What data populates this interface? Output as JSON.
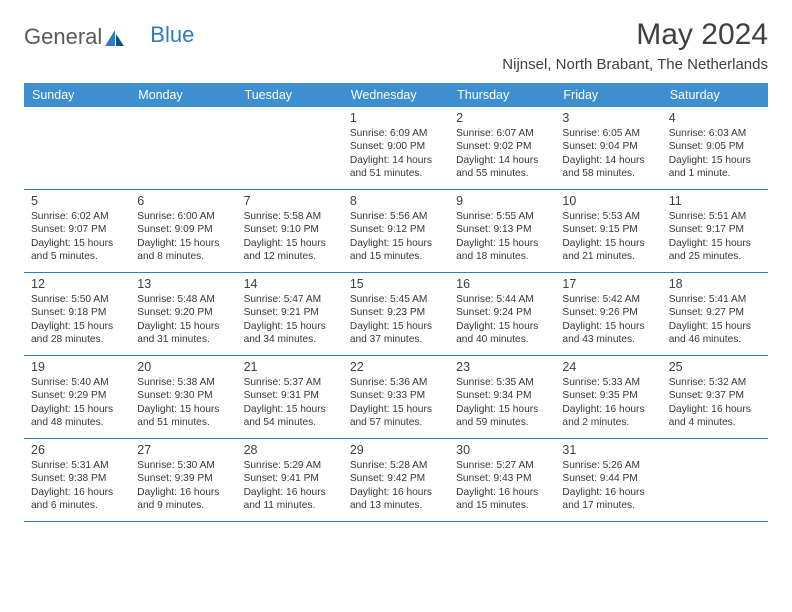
{
  "colors": {
    "header_bg": "#3d8fcf",
    "header_text": "#ffffff",
    "row_border": "#2f7bbf",
    "text": "#383838",
    "logo_gray": "#5a5a5a",
    "logo_blue": "#2f7bbf",
    "background": "#ffffff"
  },
  "typography": {
    "title_fontsize": 30,
    "subtitle_fontsize": 15,
    "header_fontsize": 12.5,
    "daynum_fontsize": 12.5,
    "body_fontsize": 10.2
  },
  "logo": {
    "text1": "General",
    "text2": "Blue"
  },
  "title": "May 2024",
  "subtitle": "Nijnsel, North Brabant, The Netherlands",
  "day_headers": [
    "Sunday",
    "Monday",
    "Tuesday",
    "Wednesday",
    "Thursday",
    "Friday",
    "Saturday"
  ],
  "weeks": [
    [
      null,
      null,
      null,
      {
        "d": "1",
        "sr": "6:09 AM",
        "ss": "9:00 PM",
        "dl": "14 hours and 51 minutes."
      },
      {
        "d": "2",
        "sr": "6:07 AM",
        "ss": "9:02 PM",
        "dl": "14 hours and 55 minutes."
      },
      {
        "d": "3",
        "sr": "6:05 AM",
        "ss": "9:04 PM",
        "dl": "14 hours and 58 minutes."
      },
      {
        "d": "4",
        "sr": "6:03 AM",
        "ss": "9:05 PM",
        "dl": "15 hours and 1 minute."
      }
    ],
    [
      {
        "d": "5",
        "sr": "6:02 AM",
        "ss": "9:07 PM",
        "dl": "15 hours and 5 minutes."
      },
      {
        "d": "6",
        "sr": "6:00 AM",
        "ss": "9:09 PM",
        "dl": "15 hours and 8 minutes."
      },
      {
        "d": "7",
        "sr": "5:58 AM",
        "ss": "9:10 PM",
        "dl": "15 hours and 12 minutes."
      },
      {
        "d": "8",
        "sr": "5:56 AM",
        "ss": "9:12 PM",
        "dl": "15 hours and 15 minutes."
      },
      {
        "d": "9",
        "sr": "5:55 AM",
        "ss": "9:13 PM",
        "dl": "15 hours and 18 minutes."
      },
      {
        "d": "10",
        "sr": "5:53 AM",
        "ss": "9:15 PM",
        "dl": "15 hours and 21 minutes."
      },
      {
        "d": "11",
        "sr": "5:51 AM",
        "ss": "9:17 PM",
        "dl": "15 hours and 25 minutes."
      }
    ],
    [
      {
        "d": "12",
        "sr": "5:50 AM",
        "ss": "9:18 PM",
        "dl": "15 hours and 28 minutes."
      },
      {
        "d": "13",
        "sr": "5:48 AM",
        "ss": "9:20 PM",
        "dl": "15 hours and 31 minutes."
      },
      {
        "d": "14",
        "sr": "5:47 AM",
        "ss": "9:21 PM",
        "dl": "15 hours and 34 minutes."
      },
      {
        "d": "15",
        "sr": "5:45 AM",
        "ss": "9:23 PM",
        "dl": "15 hours and 37 minutes."
      },
      {
        "d": "16",
        "sr": "5:44 AM",
        "ss": "9:24 PM",
        "dl": "15 hours and 40 minutes."
      },
      {
        "d": "17",
        "sr": "5:42 AM",
        "ss": "9:26 PM",
        "dl": "15 hours and 43 minutes."
      },
      {
        "d": "18",
        "sr": "5:41 AM",
        "ss": "9:27 PM",
        "dl": "15 hours and 46 minutes."
      }
    ],
    [
      {
        "d": "19",
        "sr": "5:40 AM",
        "ss": "9:29 PM",
        "dl": "15 hours and 48 minutes."
      },
      {
        "d": "20",
        "sr": "5:38 AM",
        "ss": "9:30 PM",
        "dl": "15 hours and 51 minutes."
      },
      {
        "d": "21",
        "sr": "5:37 AM",
        "ss": "9:31 PM",
        "dl": "15 hours and 54 minutes."
      },
      {
        "d": "22",
        "sr": "5:36 AM",
        "ss": "9:33 PM",
        "dl": "15 hours and 57 minutes."
      },
      {
        "d": "23",
        "sr": "5:35 AM",
        "ss": "9:34 PM",
        "dl": "15 hours and 59 minutes."
      },
      {
        "d": "24",
        "sr": "5:33 AM",
        "ss": "9:35 PM",
        "dl": "16 hours and 2 minutes."
      },
      {
        "d": "25",
        "sr": "5:32 AM",
        "ss": "9:37 PM",
        "dl": "16 hours and 4 minutes."
      }
    ],
    [
      {
        "d": "26",
        "sr": "5:31 AM",
        "ss": "9:38 PM",
        "dl": "16 hours and 6 minutes."
      },
      {
        "d": "27",
        "sr": "5:30 AM",
        "ss": "9:39 PM",
        "dl": "16 hours and 9 minutes."
      },
      {
        "d": "28",
        "sr": "5:29 AM",
        "ss": "9:41 PM",
        "dl": "16 hours and 11 minutes."
      },
      {
        "d": "29",
        "sr": "5:28 AM",
        "ss": "9:42 PM",
        "dl": "16 hours and 13 minutes."
      },
      {
        "d": "30",
        "sr": "5:27 AM",
        "ss": "9:43 PM",
        "dl": "16 hours and 15 minutes."
      },
      {
        "d": "31",
        "sr": "5:26 AM",
        "ss": "9:44 PM",
        "dl": "16 hours and 17 minutes."
      },
      null
    ]
  ],
  "labels": {
    "sunrise": "Sunrise: ",
    "sunset": "Sunset: ",
    "daylight": "Daylight: "
  }
}
